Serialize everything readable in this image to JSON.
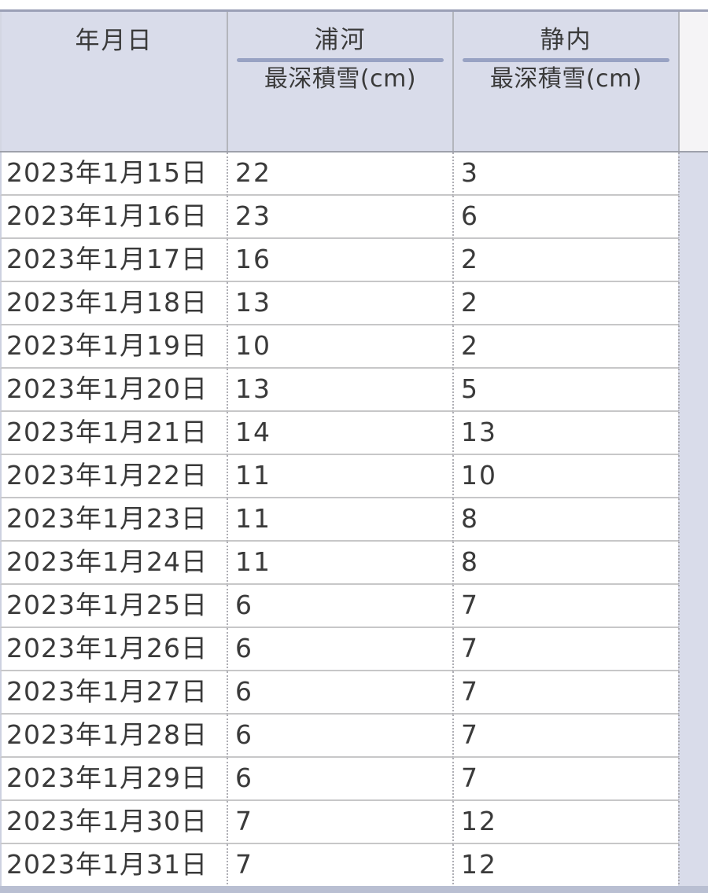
{
  "table": {
    "date_header": "年月日",
    "stations": [
      {
        "name": "浦河",
        "measure": "最深積雪(cm)"
      },
      {
        "name": "静内",
        "measure": "最深積雪(cm)"
      }
    ],
    "rows": [
      {
        "date": "2023年1月15日",
        "values": [
          "22",
          "3"
        ]
      },
      {
        "date": "2023年1月16日",
        "values": [
          "23",
          "6"
        ]
      },
      {
        "date": "2023年1月17日",
        "values": [
          "16",
          "2"
        ]
      },
      {
        "date": "2023年1月18日",
        "values": [
          "13",
          "2"
        ]
      },
      {
        "date": "2023年1月19日",
        "values": [
          "10",
          "2"
        ]
      },
      {
        "date": "2023年1月20日",
        "values": [
          "13",
          "5"
        ]
      },
      {
        "date": "2023年1月21日",
        "values": [
          "14",
          "13"
        ]
      },
      {
        "date": "2023年1月22日",
        "values": [
          "11",
          "10"
        ]
      },
      {
        "date": "2023年1月23日",
        "values": [
          "11",
          "8"
        ]
      },
      {
        "date": "2023年1月24日",
        "values": [
          "11",
          "8"
        ]
      },
      {
        "date": "2023年1月25日",
        "values": [
          "6",
          "7"
        ]
      },
      {
        "date": "2023年1月26日",
        "values": [
          "6",
          "7"
        ]
      },
      {
        "date": "2023年1月27日",
        "values": [
          "6",
          "7"
        ]
      },
      {
        "date": "2023年1月28日",
        "values": [
          "6",
          "7"
        ]
      },
      {
        "date": "2023年1月29日",
        "values": [
          "6",
          "7"
        ]
      },
      {
        "date": "2023年1月30日",
        "values": [
          "7",
          "12"
        ]
      },
      {
        "date": "2023年1月31日",
        "values": [
          "7",
          "12"
        ]
      }
    ],
    "colors": {
      "header_bg": "#d9dcea",
      "header_strip_bg": "#f5f4f6",
      "body_strip_bg": "#d9dcea",
      "underline": "#98a2c3",
      "top_border": "#9ba0b6",
      "row_border": "#c7c7c8",
      "dotted_border": "#aeaeb4",
      "header_divider": "#b3b5bc",
      "header_bottom_border": "#9ea1ab",
      "text": "#3a3a3a",
      "bottom_band": "#b9bfd2"
    }
  },
  "chart_data": {
    "type": "table",
    "title": "最深積雪(cm)",
    "columns": [
      "年月日",
      "浦河 最深積雪(cm)",
      "静内 最深積雪(cm)"
    ],
    "dates": [
      "2023年1月15日",
      "2023年1月16日",
      "2023年1月17日",
      "2023年1月18日",
      "2023年1月19日",
      "2023年1月20日",
      "2023年1月21日",
      "2023年1月22日",
      "2023年1月23日",
      "2023年1月24日",
      "2023年1月25日",
      "2023年1月26日",
      "2023年1月27日",
      "2023年1月28日",
      "2023年1月29日",
      "2023年1月30日",
      "2023年1月31日"
    ],
    "series": [
      {
        "name": "浦河",
        "values": [
          22,
          23,
          16,
          13,
          10,
          13,
          14,
          11,
          11,
          11,
          6,
          6,
          6,
          6,
          6,
          7,
          7
        ]
      },
      {
        "name": "静内",
        "values": [
          3,
          6,
          2,
          2,
          2,
          5,
          13,
          10,
          8,
          8,
          7,
          7,
          7,
          7,
          7,
          12,
          12
        ]
      }
    ]
  }
}
